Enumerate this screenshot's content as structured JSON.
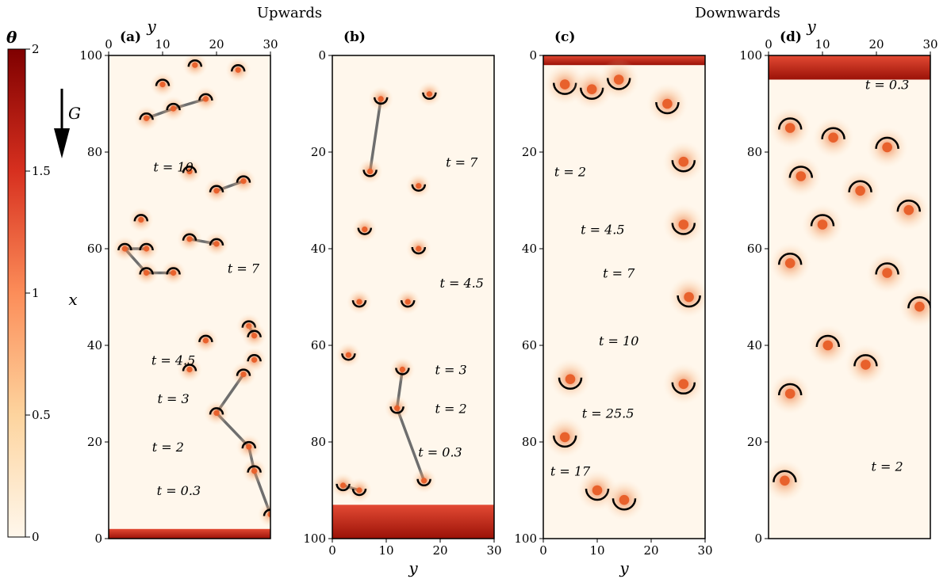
{
  "headers": {
    "left": "Upwards",
    "right": "Downwards"
  },
  "colorbar": {
    "title": "θ",
    "ticks": [
      "0",
      "0.5",
      "1",
      "1.5",
      "2"
    ],
    "range": [
      0,
      2
    ],
    "stops": [
      "#fff7ec",
      "#fdd49e",
      "#fc8d59",
      "#d7301f",
      "#7f0000"
    ]
  },
  "gravity_label": "G",
  "chart_data": [
    {
      "type": "heatmap",
      "panel": "(a)",
      "xlabel": "x",
      "ylabel": "y",
      "y_ticks": [
        "0",
        "10",
        "20",
        "30"
      ],
      "x_ticks": [
        "0",
        "20",
        "40",
        "60",
        "80",
        "100"
      ],
      "x_range": [
        0,
        100
      ],
      "y_range": [
        0,
        30
      ],
      "x_axis_reversed": false,
      "y_axis_position": "top",
      "boundary_layer": {
        "x_from": 0,
        "x_to": 2
      },
      "plumes": [
        {
          "x": 98,
          "y": 16
        },
        {
          "x": 97,
          "y": 24
        },
        {
          "x": 94,
          "y": 10
        },
        {
          "x": 91,
          "y": 18
        },
        {
          "x": 89,
          "y": 12
        },
        {
          "x": 87,
          "y": 7
        },
        {
          "x": 76,
          "y": 15
        },
        {
          "x": 74,
          "y": 25
        },
        {
          "x": 72,
          "y": 20
        },
        {
          "x": 66,
          "y": 6
        },
        {
          "x": 62,
          "y": 15
        },
        {
          "x": 61,
          "y": 20
        },
        {
          "x": 60,
          "y": 3
        },
        {
          "x": 60,
          "y": 7
        },
        {
          "x": 55,
          "y": 12
        },
        {
          "x": 55,
          "y": 7
        },
        {
          "x": 44,
          "y": 26
        },
        {
          "x": 42,
          "y": 27
        },
        {
          "x": 41,
          "y": 18
        },
        {
          "x": 37,
          "y": 27
        },
        {
          "x": 35,
          "y": 15
        },
        {
          "x": 34,
          "y": 25
        },
        {
          "x": 26,
          "y": 20
        },
        {
          "x": 19,
          "y": 26
        },
        {
          "x": 14,
          "y": 27
        },
        {
          "x": 5,
          "y": 30
        }
      ],
      "annotations": [
        {
          "text": "t = 10",
          "x": 76,
          "y": 12
        },
        {
          "text": "t = 7",
          "x": 55,
          "y": 25
        },
        {
          "text": "t = 4.5",
          "x": 36,
          "y": 12
        },
        {
          "text": "t = 3",
          "x": 28,
          "y": 12
        },
        {
          "text": "t = 2",
          "x": 18,
          "y": 11
        },
        {
          "text": "t = 0.3",
          "x": 9,
          "y": 13
        }
      ]
    },
    {
      "type": "heatmap",
      "panel": "(b)",
      "xlabel": "",
      "ylabel": "y",
      "y_ticks": [
        "0",
        "10",
        "20",
        "30"
      ],
      "x_ticks": [
        "0",
        "20",
        "40",
        "60",
        "80",
        "100"
      ],
      "x_range": [
        0,
        100
      ],
      "y_range": [
        0,
        30
      ],
      "x_axis_reversed": true,
      "y_axis_position": "bottom",
      "boundary_layer": {
        "x_from": 93,
        "x_to": 100
      },
      "plumes": [
        {
          "x": 9,
          "y": 9
        },
        {
          "x": 8,
          "y": 18
        },
        {
          "x": 24,
          "y": 7
        },
        {
          "x": 27,
          "y": 16
        },
        {
          "x": 36,
          "y": 6
        },
        {
          "x": 40,
          "y": 16
        },
        {
          "x": 51,
          "y": 5
        },
        {
          "x": 51,
          "y": 14
        },
        {
          "x": 62,
          "y": 3
        },
        {
          "x": 65,
          "y": 13
        },
        {
          "x": 73,
          "y": 12
        },
        {
          "x": 89,
          "y": 2
        },
        {
          "x": 90,
          "y": 5
        },
        {
          "x": 88,
          "y": 17
        }
      ],
      "annotations": [
        {
          "text": "t = 7",
          "x": 23,
          "y": 24
        },
        {
          "text": "t = 4.5",
          "x": 48,
          "y": 24
        },
        {
          "text": "t = 3",
          "x": 66,
          "y": 22
        },
        {
          "text": "t = 2",
          "x": 74,
          "y": 22
        },
        {
          "text": "t = 0.3",
          "x": 83,
          "y": 20
        }
      ]
    },
    {
      "type": "heatmap",
      "panel": "(c)",
      "xlabel": "",
      "ylabel": "y",
      "y_ticks": [
        "0",
        "10",
        "20",
        "30"
      ],
      "x_ticks": [
        "0",
        "20",
        "40",
        "60",
        "80",
        "100"
      ],
      "x_range": [
        0,
        100
      ],
      "y_range": [
        0,
        30
      ],
      "x_axis_reversed": true,
      "y_axis_position": "bottom",
      "boundary_layer": {
        "x_from": 0,
        "x_to": 2
      },
      "plumes": [
        {
          "x": 6,
          "y": 4
        },
        {
          "x": 7,
          "y": 9
        },
        {
          "x": 5,
          "y": 14
        },
        {
          "x": 10,
          "y": 23
        },
        {
          "x": 22,
          "y": 26
        },
        {
          "x": 35,
          "y": 26
        },
        {
          "x": 50,
          "y": 27
        },
        {
          "x": 68,
          "y": 26
        },
        {
          "x": 67,
          "y": 5
        },
        {
          "x": 79,
          "y": 4
        },
        {
          "x": 90,
          "y": 10
        },
        {
          "x": 92,
          "y": 15
        }
      ],
      "annotations": [
        {
          "text": "t = 2",
          "x": 25,
          "y": 5
        },
        {
          "text": "t = 4.5",
          "x": 37,
          "y": 11
        },
        {
          "text": "t = 7",
          "x": 46,
          "y": 14
        },
        {
          "text": "t = 10",
          "x": 60,
          "y": 14
        },
        {
          "text": "t = 25.5",
          "x": 75,
          "y": 12
        },
        {
          "text": "t = 17",
          "x": 87,
          "y": 5
        }
      ]
    },
    {
      "type": "heatmap",
      "panel": "(d)",
      "xlabel": "",
      "ylabel": "y",
      "y_ticks": [
        "0",
        "10",
        "20",
        "30"
      ],
      "x_ticks": [
        "0",
        "20",
        "40",
        "60",
        "80",
        "100"
      ],
      "x_range": [
        0,
        100
      ],
      "y_range": [
        0,
        30
      ],
      "x_axis_reversed": false,
      "y_axis_position": "top",
      "boundary_layer": {
        "x_from": 95,
        "x_to": 100
      },
      "plumes": [
        {
          "x": 85,
          "y": 4
        },
        {
          "x": 83,
          "y": 12
        },
        {
          "x": 81,
          "y": 22
        },
        {
          "x": 75,
          "y": 6
        },
        {
          "x": 72,
          "y": 17
        },
        {
          "x": 68,
          "y": 26
        },
        {
          "x": 65,
          "y": 10
        },
        {
          "x": 57,
          "y": 4
        },
        {
          "x": 55,
          "y": 22
        },
        {
          "x": 48,
          "y": 28
        },
        {
          "x": 40,
          "y": 11
        },
        {
          "x": 36,
          "y": 18
        },
        {
          "x": 30,
          "y": 4
        },
        {
          "x": 12,
          "y": 3
        }
      ],
      "annotations": [
        {
          "text": "t = 0.3",
          "x": 93,
          "y": 22
        },
        {
          "text": "t = 2",
          "x": 14,
          "y": 22
        }
      ]
    }
  ]
}
